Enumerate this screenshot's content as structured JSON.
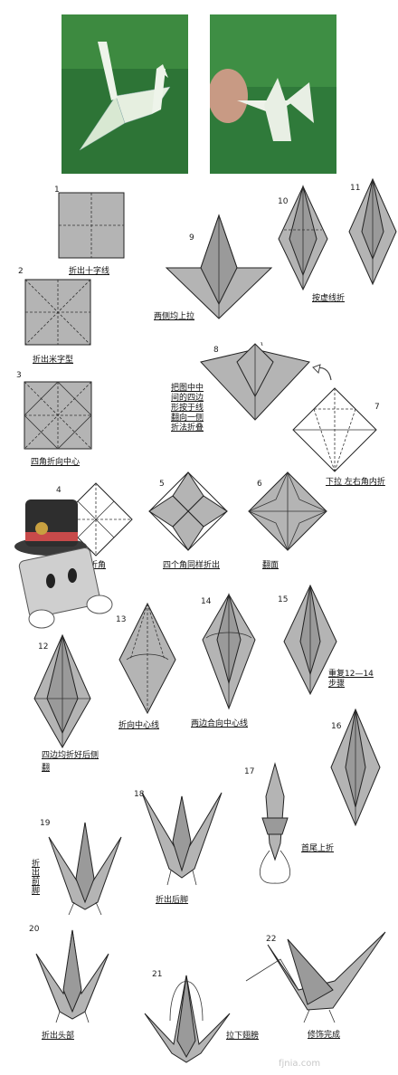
{
  "steps": [
    {
      "n": "1",
      "caption": "折出十字线"
    },
    {
      "n": "2",
      "caption": "折出米字型"
    },
    {
      "n": "3",
      "caption": "四角折向中心"
    },
    {
      "n": "4",
      "caption": "按虚线折角"
    },
    {
      "n": "5",
      "caption": "四个角同样折出"
    },
    {
      "n": "6",
      "caption": "翻面"
    },
    {
      "n": "7",
      "caption": "下拉 左右角内折"
    },
    {
      "n": "8",
      "caption": "把图中中间的四边形按于线翻向一侧折法折叠"
    },
    {
      "n": "9",
      "caption": "两侧均上拉"
    },
    {
      "n": "10",
      "caption": "按虚线折"
    },
    {
      "n": "11",
      "caption": ""
    },
    {
      "n": "12",
      "caption": "四边均折好后侧翻"
    },
    {
      "n": "13",
      "caption": "折向中心线"
    },
    {
      "n": "14",
      "caption": "两边合向中心线"
    },
    {
      "n": "15",
      "caption": "重复12—14步骤"
    },
    {
      "n": "16",
      "caption": ""
    },
    {
      "n": "17",
      "caption": "首尾上折"
    },
    {
      "n": "18",
      "caption": "折出后脚"
    },
    {
      "n": "19",
      "caption": "折出前脚"
    },
    {
      "n": "20",
      "caption": "折出头部"
    },
    {
      "n": "21",
      "caption": "拉下翅膀"
    },
    {
      "n": "22",
      "caption": "修饰完成"
    }
  ],
  "watermark": "fjnia.com",
  "colors": {
    "paper": "#b4b4b4",
    "line": "#222222",
    "photo_bg": "#2f7a3a"
  }
}
